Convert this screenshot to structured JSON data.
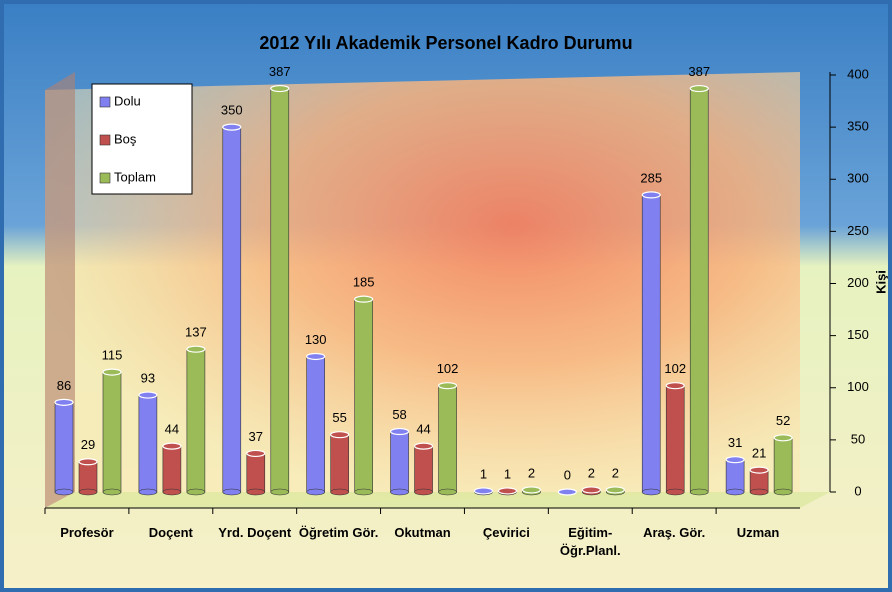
{
  "chart_data": {
    "type": "bar",
    "title": "2012 Yılı Akademik Personel Kadro Durumu",
    "y_label": "Kişi",
    "y_axis_side": "right",
    "legend_position": "upper left",
    "grid": false,
    "categories": [
      "Profesör",
      "Doçent",
      "Yrd. Doçent",
      "Öğretim Gör.",
      "Okutman",
      "Çevirici",
      "Eğitim-Öğr.Planl.",
      "Araş. Gör.",
      "Uzman"
    ],
    "series": [
      {
        "name": "Dolu",
        "color": "#8080f0",
        "values": [
          86,
          93,
          350,
          130,
          58,
          1,
          0,
          285,
          31
        ]
      },
      {
        "name": "Boş",
        "color": "#c0504d",
        "values": [
          29,
          44,
          37,
          55,
          44,
          1,
          2,
          102,
          21
        ]
      },
      {
        "name": "Toplam",
        "color": "#9bbb59",
        "values": [
          115,
          137,
          387,
          185,
          102,
          2,
          2,
          387,
          52
        ]
      }
    ],
    "ylim": [
      0,
      400
    ],
    "yticks": [
      0,
      50,
      100,
      150,
      200,
      250,
      300,
      350,
      400
    ]
  }
}
